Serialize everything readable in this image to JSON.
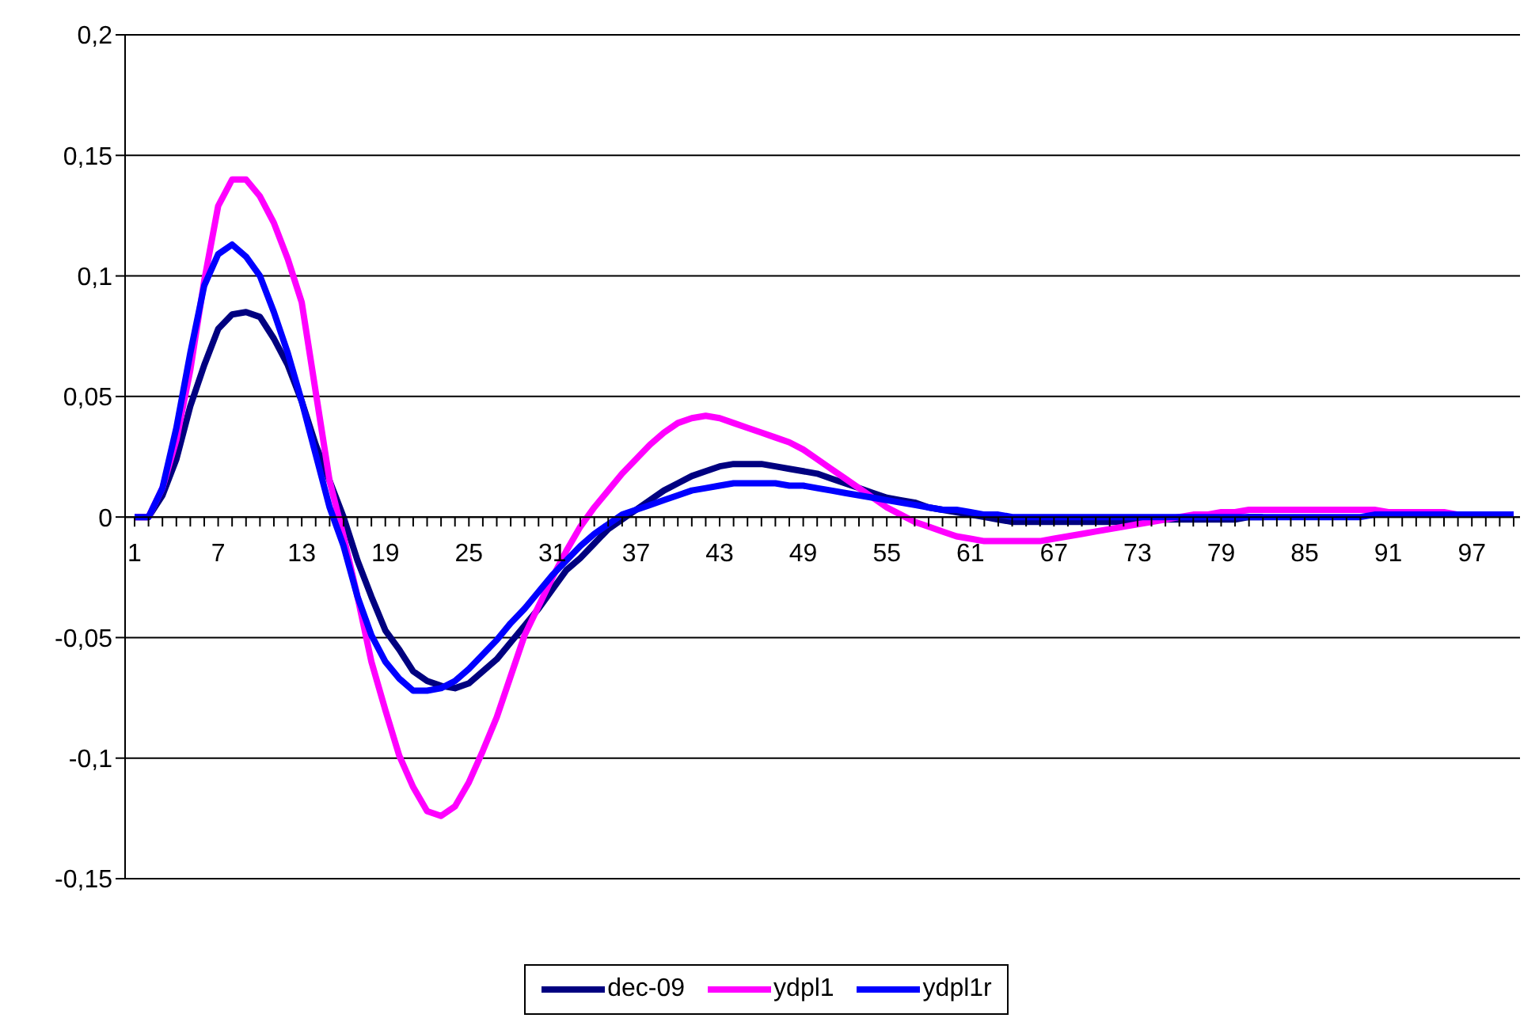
{
  "chart_data": {
    "type": "line",
    "categories": [
      "1",
      null,
      null,
      null,
      null,
      null,
      "7",
      null,
      null,
      null,
      null,
      null,
      "13",
      null,
      null,
      null,
      null,
      null,
      "19",
      null,
      null,
      null,
      null,
      null,
      "25",
      null,
      null,
      null,
      null,
      null,
      "31",
      null,
      null,
      null,
      null,
      null,
      "37",
      null,
      null,
      null,
      null,
      null,
      "43",
      null,
      null,
      null,
      null,
      null,
      "49",
      null,
      null,
      null,
      null,
      null,
      "55",
      null,
      null,
      null,
      null,
      null,
      "61",
      null,
      null,
      null,
      null,
      null,
      "67",
      null,
      null,
      null,
      null,
      null,
      "73",
      null,
      null,
      null,
      null,
      null,
      "79",
      null,
      null,
      null,
      null,
      null,
      "85",
      null,
      null,
      null,
      null,
      null,
      "91",
      null,
      null,
      null,
      null,
      null,
      "97",
      null,
      null,
      null
    ],
    "series": [
      {
        "name": "dec-09",
        "color": "#000080",
        "values": [
          0,
          0,
          0.009,
          0.024,
          0.046,
          0.063,
          0.078,
          0.084,
          0.085,
          0.083,
          0.074,
          0.063,
          0.048,
          0.03,
          0.015,
          0,
          -0.018,
          -0.033,
          -0.047,
          -0.055,
          -0.064,
          -0.068,
          -0.07,
          -0.071,
          -0.069,
          -0.064,
          -0.059,
          -0.052,
          -0.045,
          -0.038,
          -0.03,
          -0.022,
          -0.017,
          -0.011,
          -0.005,
          -0.001,
          0.003,
          0.007,
          0.011,
          0.014,
          0.017,
          0.019,
          0.021,
          0.022,
          0.022,
          0.022,
          0.021,
          0.02,
          0.019,
          0.018,
          0.016,
          0.014,
          0.012,
          0.01,
          0.008,
          0.007,
          0.006,
          0.004,
          0.003,
          0.002,
          0.001,
          0,
          -0.001,
          -0.002,
          -0.002,
          -0.002,
          -0.002,
          -0.002,
          -0.002,
          -0.002,
          -0.002,
          -0.002,
          -0.001,
          -0.001,
          -0.001,
          -0.001,
          -0.001,
          -0.001,
          -0.001,
          -0.001,
          0,
          0,
          null,
          null,
          null,
          null,
          null,
          null,
          null,
          null,
          null,
          null,
          null,
          null,
          null,
          null,
          null,
          null,
          null,
          null
        ]
      },
      {
        "name": "ydpl1",
        "color": "#ff00ff",
        "values": [
          0,
          0,
          0.012,
          0.032,
          0.061,
          0.098,
          0.129,
          0.14,
          0.14,
          0.133,
          0.122,
          0.107,
          0.089,
          0.052,
          0.015,
          -0.008,
          -0.033,
          -0.06,
          -0.08,
          -0.099,
          -0.112,
          -0.122,
          -0.124,
          -0.12,
          -0.11,
          -0.097,
          -0.083,
          -0.066,
          -0.049,
          -0.037,
          -0.025,
          -0.014,
          -0.004,
          0.004,
          0.011,
          0.018,
          0.024,
          0.03,
          0.035,
          0.039,
          0.041,
          0.042,
          0.041,
          0.039,
          0.037,
          0.035,
          0.033,
          0.031,
          0.028,
          0.024,
          0.02,
          0.016,
          0.012,
          0.008,
          0.004,
          0.001,
          -0.002,
          -0.004,
          -0.006,
          -0.008,
          -0.009,
          -0.01,
          -0.01,
          -0.01,
          -0.01,
          -0.01,
          -0.009,
          -0.008,
          -0.007,
          -0.006,
          -0.005,
          -0.004,
          -0.003,
          -0.002,
          -0.001,
          0,
          0.001,
          0.001,
          0.002,
          0.002,
          0.003,
          0.003,
          0.003,
          0.003,
          0.003,
          0.003,
          0.003,
          0.003,
          0.003,
          0.003,
          0.002,
          0.002,
          0.002,
          0.002,
          0.002,
          0.001,
          null,
          null,
          null,
          null
        ]
      },
      {
        "name": "ydpl1r",
        "color": "#0000ff",
        "values": [
          0,
          0,
          0.012,
          0.037,
          0.068,
          0.096,
          0.109,
          0.113,
          0.108,
          0.1,
          0.085,
          0.068,
          0.048,
          0.026,
          0.004,
          -0.012,
          -0.033,
          -0.049,
          -0.06,
          -0.067,
          -0.072,
          -0.072,
          -0.071,
          -0.068,
          -0.063,
          -0.057,
          -0.051,
          -0.044,
          -0.038,
          -0.031,
          -0.024,
          -0.018,
          -0.012,
          -0.007,
          -0.003,
          0.001,
          0.003,
          0.005,
          0.007,
          0.009,
          0.011,
          0.012,
          0.013,
          0.014,
          0.014,
          0.014,
          0.014,
          0.013,
          0.013,
          0.012,
          0.011,
          0.01,
          0.009,
          0.008,
          0.007,
          0.006,
          0.005,
          0.004,
          0.003,
          0.003,
          0.002,
          0.001,
          0.001,
          0,
          0,
          0,
          0,
          0,
          0,
          0,
          0,
          0,
          0,
          0,
          0,
          0,
          0,
          0,
          0,
          0,
          0,
          0,
          0,
          0,
          0,
          0,
          0,
          0,
          0,
          0.001,
          0.001,
          0.001,
          0.001,
          0.001,
          0.001,
          0.001,
          0.001,
          0.001,
          0.001,
          0.001
        ]
      }
    ],
    "ylim": [
      -0.15,
      0.2
    ],
    "yticks": [
      {
        "value": -0.15,
        "label": "-0,15"
      },
      {
        "value": -0.1,
        "label": "-0,1"
      },
      {
        "value": -0.05,
        "label": "-0,05"
      },
      {
        "value": 0,
        "label": "0"
      },
      {
        "value": 0.05,
        "label": "0,05"
      },
      {
        "value": 0.1,
        "label": "0,1"
      },
      {
        "value": 0.15,
        "label": "0,15"
      },
      {
        "value": 0.2,
        "label": "0,2"
      }
    ],
    "grid": "y",
    "legend": "bottom",
    "marker": "none",
    "line_style": "solid"
  }
}
